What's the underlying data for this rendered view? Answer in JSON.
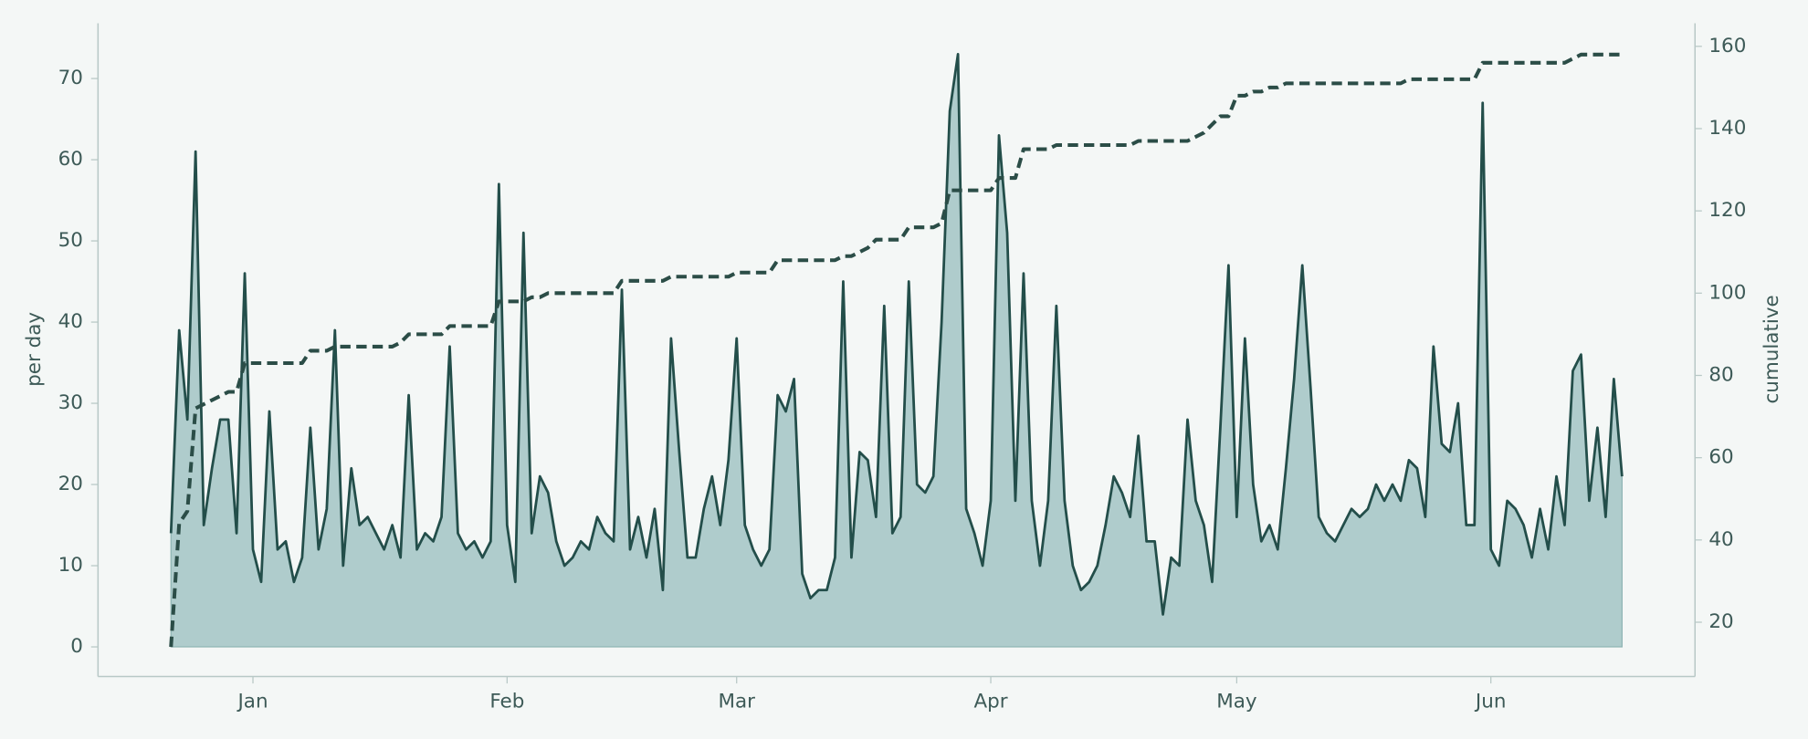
{
  "chart_data": {
    "type": "line",
    "y_label": "per day",
    "y2_label": "cumulative",
    "xlim": [
      -8.9,
      185.9
    ],
    "xticks": [
      {
        "value": 10,
        "label": "Jan"
      },
      {
        "value": 41,
        "label": "Feb"
      },
      {
        "value": 69,
        "label": "Mar"
      },
      {
        "value": 100,
        "label": "Apr"
      },
      {
        "value": 130,
        "label": "May"
      },
      {
        "value": 161,
        "label": "Jun"
      }
    ],
    "ylim": [
      -3.65,
      76.8
    ],
    "yticks": [
      0,
      10,
      20,
      30,
      40,
      50,
      60,
      70
    ],
    "y2lim": [
      6.8,
      165.6
    ],
    "y2ticks": [
      20,
      40,
      60,
      80,
      100,
      120,
      140,
      160
    ],
    "grid": false,
    "series": [
      {
        "color": "#234e4a",
        "area_color": "#afcccc",
        "style": "solid",
        "values": [
          14,
          39,
          28,
          61,
          15,
          22,
          28,
          28,
          14,
          46,
          12,
          8,
          29,
          12,
          13,
          8,
          11,
          27,
          12,
          17,
          39,
          10,
          22,
          15,
          16,
          14,
          12,
          15,
          11,
          31,
          12,
          14,
          13,
          16,
          37,
          14,
          12,
          13,
          11,
          13,
          57,
          15,
          8,
          51,
          14,
          21,
          19,
          13,
          10,
          11,
          13,
          12,
          16,
          14,
          13,
          44,
          12,
          16,
          11,
          17,
          7,
          38,
          24,
          11,
          11,
          17,
          21,
          15,
          23,
          38,
          15,
          12,
          10,
          12,
          31,
          29,
          33,
          9,
          6,
          7,
          7,
          11,
          45,
          11,
          24,
          23,
          16,
          42,
          14,
          16,
          45,
          20,
          19,
          21,
          40,
          66,
          73,
          17,
          14,
          10,
          18,
          63,
          51,
          18,
          46,
          18,
          10,
          18,
          42,
          18,
          10,
          7,
          8,
          10,
          15,
          21,
          19,
          16,
          26,
          13,
          13,
          4,
          11,
          10,
          28,
          18,
          15,
          8,
          27,
          47,
          16,
          38,
          20,
          13,
          15,
          12,
          22,
          33,
          47,
          32,
          16,
          14,
          13,
          15,
          17,
          16,
          17,
          20,
          18,
          20,
          18,
          23,
          22,
          16,
          37,
          25,
          24,
          30,
          15,
          15,
          67,
          12,
          10,
          18,
          17,
          15,
          11,
          17,
          12,
          21,
          15,
          34,
          36,
          18,
          27,
          16,
          33,
          21
        ]
      },
      {
        "color": "#2b4d47",
        "style": "dashed",
        "axis": "y2",
        "values": [
          14,
          44,
          47,
          72,
          73,
          74,
          75,
          76,
          76,
          83,
          83,
          83,
          83,
          83,
          83,
          83,
          83,
          86,
          86,
          86,
          87,
          87,
          87,
          87,
          87,
          87,
          87,
          87,
          88,
          90,
          90,
          90,
          90,
          90,
          92,
          92,
          92,
          92,
          92,
          92,
          98,
          98,
          98,
          98,
          99,
          99,
          100,
          100,
          100,
          100,
          100,
          100,
          100,
          100,
          100,
          103,
          103,
          103,
          103,
          103,
          103,
          104,
          104,
          104,
          104,
          104,
          104,
          104,
          104,
          105,
          105,
          105,
          105,
          105,
          108,
          108,
          108,
          108,
          108,
          108,
          108,
          108,
          109,
          109,
          110,
          111,
          113,
          113,
          113,
          113,
          116,
          116,
          116,
          116,
          117,
          125,
          125,
          125,
          125,
          125,
          125,
          128,
          128,
          128,
          135,
          135,
          135,
          135,
          136,
          136,
          136,
          136,
          136,
          136,
          136,
          136,
          136,
          136,
          137,
          137,
          137,
          137,
          137,
          137,
          137,
          138,
          139,
          141,
          143,
          143,
          148,
          148,
          149,
          149,
          150,
          150,
          151,
          151,
          151,
          151,
          151,
          151,
          151,
          151,
          151,
          151,
          151,
          151,
          151,
          151,
          151,
          152,
          152,
          152,
          152,
          152,
          152,
          152,
          152,
          152,
          156,
          156,
          156,
          156,
          156,
          156,
          156,
          156,
          156,
          156,
          156,
          157,
          158,
          158,
          158,
          158,
          158,
          158
        ]
      }
    ]
  }
}
